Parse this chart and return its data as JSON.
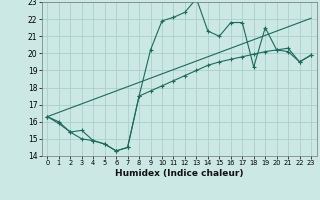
{
  "xlabel": "Humidex (Indice chaleur)",
  "xlim": [
    -0.5,
    23.5
  ],
  "ylim": [
    14,
    23
  ],
  "xticks": [
    0,
    1,
    2,
    3,
    4,
    5,
    6,
    7,
    8,
    9,
    10,
    11,
    12,
    13,
    14,
    15,
    16,
    17,
    18,
    19,
    20,
    21,
    22,
    23
  ],
  "yticks": [
    14,
    15,
    16,
    17,
    18,
    19,
    20,
    21,
    22,
    23
  ],
  "background_color": "#cce8e5",
  "grid_color": "#aacfcc",
  "line_color": "#1a6b5a",
  "line1_x": [
    0,
    1,
    2,
    3,
    4,
    5,
    6,
    7,
    8,
    9,
    10,
    11,
    12,
    13,
    14,
    15,
    16,
    17,
    18,
    19,
    20,
    21,
    22,
    23
  ],
  "line1_y": [
    16.3,
    15.9,
    15.4,
    15.5,
    14.9,
    14.7,
    14.3,
    14.5,
    17.5,
    20.2,
    21.9,
    22.1,
    22.4,
    23.2,
    21.3,
    21.0,
    21.8,
    21.8,
    19.2,
    21.5,
    20.2,
    20.1,
    19.5,
    19.9
  ],
  "line2_x": [
    0,
    1,
    2,
    3,
    4,
    5,
    6,
    7,
    8,
    9,
    10,
    11,
    12,
    13,
    14,
    15,
    16,
    17,
    18,
    19,
    20,
    21,
    22,
    23
  ],
  "line2_y": [
    16.3,
    16.55,
    16.8,
    17.05,
    17.3,
    17.55,
    17.8,
    18.05,
    18.3,
    18.55,
    18.8,
    19.05,
    19.3,
    19.55,
    19.8,
    20.05,
    20.3,
    20.55,
    20.8,
    21.05,
    21.3,
    21.55,
    21.8,
    22.05
  ],
  "line3_x": [
    0,
    1,
    2,
    3,
    4,
    5,
    6,
    7,
    8,
    9,
    10,
    11,
    12,
    13,
    14,
    15,
    16,
    17,
    18,
    19,
    20,
    21,
    22,
    23
  ],
  "line3_y": [
    16.3,
    16.0,
    15.4,
    15.0,
    14.9,
    14.7,
    14.3,
    14.5,
    17.5,
    17.8,
    18.1,
    18.4,
    18.7,
    19.0,
    19.3,
    19.5,
    19.65,
    19.8,
    19.95,
    20.1,
    20.2,
    20.3,
    19.5,
    19.9
  ]
}
